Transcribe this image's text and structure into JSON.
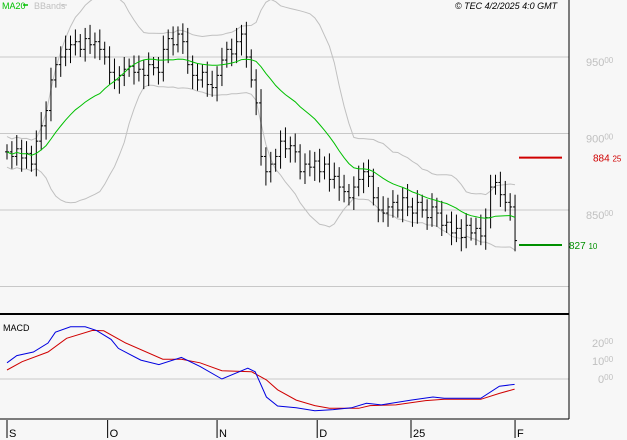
{
  "header": {
    "legend_ma": "MA20",
    "legend_bb": "BBands",
    "copyright": "© TEC 4/2/2025 4:0 GMT"
  },
  "colors": {
    "ma": "#00c000",
    "bands": "#c0c0c0",
    "resistance": "#d00000",
    "support": "#009000",
    "macd": "#0000e0",
    "signal": "#d00000"
  },
  "chart_data": [
    {
      "type": "ohlc",
      "series_ma": "MA20",
      "series_bands": "BBands",
      "y_ticks": [
        {
          "v": 950,
          "int": "950",
          "dec": "00"
        },
        {
          "v": 900,
          "int": "900",
          "dec": "00"
        },
        {
          "v": 850,
          "int": "850",
          "dec": "00"
        },
        {
          "v": 800,
          "int": "",
          "dec": ""
        }
      ],
      "ylim": [
        790,
        985
      ],
      "x_ticks": [
        {
          "i": 0,
          "label": "S"
        },
        {
          "i": 20.6,
          "label": "O"
        },
        {
          "i": 43,
          "label": "N"
        },
        {
          "i": 63.5,
          "label": "D"
        },
        {
          "i": 82.7,
          "label": "25"
        },
        {
          "i": 104,
          "label": "F"
        }
      ],
      "closes": [
        888,
        885,
        890,
        884,
        887,
        880,
        895,
        905,
        915,
        935,
        945,
        950,
        955,
        958,
        960,
        955,
        962,
        958,
        960,
        955,
        950,
        940,
        935,
        938,
        942,
        944,
        940,
        942,
        938,
        945,
        943,
        940,
        955,
        962,
        958,
        965,
        960,
        945,
        938,
        935,
        940,
        932,
        930,
        938,
        948,
        955,
        952,
        960,
        965,
        950,
        935,
        920,
        885,
        875,
        880,
        885,
        895,
        890,
        892,
        888,
        875,
        880,
        878,
        882,
        875,
        880,
        870,
        872,
        865,
        862,
        858,
        865,
        870,
        875,
        872,
        858,
        850,
        848,
        852,
        855,
        850,
        858,
        852,
        848,
        855,
        850,
        845,
        852,
        848,
        840,
        842,
        835,
        838,
        832,
        840,
        835,
        838,
        833,
        845,
        865,
        868,
        860,
        855,
        852,
        830
      ],
      "levels": [
        {
          "name": "resistance",
          "value": 884.25,
          "int": "884",
          "dec": "25"
        },
        {
          "name": "support",
          "value": 827.1,
          "int": "827",
          "dec": "10"
        }
      ]
    },
    {
      "type": "line",
      "title": "MACD",
      "y_ticks": [
        {
          "v": 20,
          "int": "20",
          "dec": "00"
        },
        {
          "v": 10,
          "int": "10",
          "dec": "00"
        },
        {
          "v": 0,
          "int": "0",
          "dec": "00"
        }
      ],
      "ylim": [
        -22,
        35
      ],
      "macd": [
        [
          0,
          9
        ],
        [
          2,
          13
        ],
        [
          5.4,
          15
        ],
        [
          8.4,
          20
        ],
        [
          9.9,
          26
        ],
        [
          13,
          29
        ],
        [
          16,
          29
        ],
        [
          18.3,
          27
        ],
        [
          21.3,
          22
        ],
        [
          22.8,
          17
        ],
        [
          27.4,
          10.5
        ],
        [
          31.1,
          8
        ],
        [
          35.7,
          12
        ],
        [
          39.5,
          7
        ],
        [
          44,
          0
        ],
        [
          49.3,
          6
        ],
        [
          50.8,
          4
        ],
        [
          53.1,
          -10
        ],
        [
          55.4,
          -15
        ],
        [
          59.2,
          -16
        ],
        [
          63,
          -17.6
        ],
        [
          66.8,
          -17
        ],
        [
          70.5,
          -16
        ],
        [
          73.6,
          -13.5
        ],
        [
          76.6,
          -14.4
        ],
        [
          82.7,
          -11.7
        ],
        [
          87.2,
          -10
        ],
        [
          89.5,
          -10.7
        ],
        [
          97,
          -10.7
        ],
        [
          100.8,
          -4
        ],
        [
          103.9,
          -3
        ]
      ],
      "signal": [
        [
          0,
          5
        ],
        [
          3.1,
          9.6
        ],
        [
          8.4,
          15
        ],
        [
          12.2,
          22.6
        ],
        [
          17.5,
          27
        ],
        [
          19.8,
          26.8
        ],
        [
          24.3,
          20
        ],
        [
          31.9,
          11
        ],
        [
          35.7,
          11
        ],
        [
          39.5,
          9
        ],
        [
          44,
          4.6
        ],
        [
          50.1,
          4
        ],
        [
          53.1,
          -0.5
        ],
        [
          55.4,
          -6
        ],
        [
          59.2,
          -11.7
        ],
        [
          63,
          -14.8
        ],
        [
          66,
          -16.3
        ],
        [
          72,
          -16.3
        ],
        [
          74.3,
          -14.8
        ],
        [
          79.6,
          -14.4
        ],
        [
          85.7,
          -12
        ],
        [
          89.5,
          -11.3
        ],
        [
          97,
          -11.3
        ],
        [
          100.8,
          -8
        ],
        [
          103.9,
          -5.6
        ]
      ]
    }
  ]
}
